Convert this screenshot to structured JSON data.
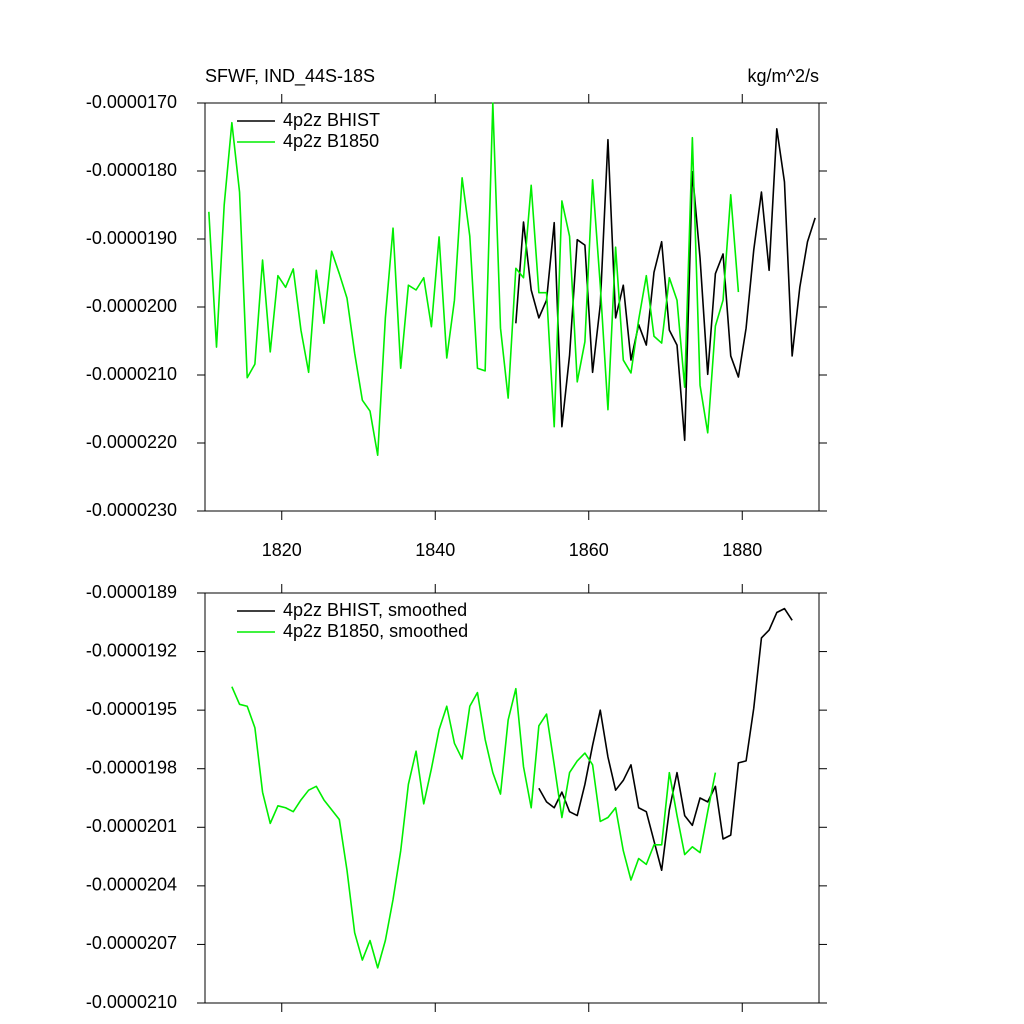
{
  "chart_data": [
    {
      "type": "line",
      "title": "SFWF, IND_44S-18S",
      "units": "kg/m^2/s",
      "x": [
        1810.5,
        1811.5,
        1812.5,
        1813.5,
        1814.5,
        1815.5,
        1816.5,
        1817.5,
        1818.5,
        1819.5,
        1820.5,
        1821.5,
        1822.5,
        1823.5,
        1824.5,
        1825.5,
        1826.5,
        1827.5,
        1828.5,
        1829.5,
        1830.5,
        1831.5,
        1832.5,
        1833.5,
        1834.5,
        1835.5,
        1836.5,
        1837.5,
        1838.5,
        1839.5,
        1840.5,
        1841.5,
        1842.5,
        1843.5,
        1844.5,
        1845.5,
        1846.5,
        1847.5,
        1848.5,
        1849.5,
        1850.5,
        1851.5,
        1852.5,
        1853.5,
        1854.5,
        1855.5,
        1856.5,
        1857.5,
        1858.5,
        1859.5,
        1860.5,
        1861.5,
        1862.5,
        1863.5,
        1864.5,
        1865.5,
        1866.5,
        1867.5,
        1868.5,
        1869.5,
        1870.5,
        1871.5,
        1872.5,
        1873.5,
        1874.5,
        1875.5,
        1876.5,
        1877.5,
        1878.5,
        1879.5,
        1880.5,
        1881.5,
        1882.5,
        1883.5,
        1884.5,
        1885.5,
        1886.5,
        1887.5,
        1888.5,
        1889.5
      ],
      "series": [
        {
          "name": "4p2z BHIST",
          "color": "#000000",
          "values": [
            null,
            null,
            null,
            null,
            null,
            null,
            null,
            null,
            null,
            null,
            null,
            null,
            null,
            null,
            null,
            null,
            null,
            null,
            null,
            null,
            null,
            null,
            null,
            null,
            null,
            null,
            null,
            null,
            null,
            null,
            null,
            null,
            null,
            null,
            null,
            null,
            null,
            null,
            null,
            null,
            -2.024e-05,
            -1.875e-05,
            -1.975e-05,
            -2.016e-05,
            -1.99e-05,
            -1.876e-05,
            -2.176e-05,
            -2.071e-05,
            -1.901e-05,
            -1.909e-05,
            -2.096e-05,
            -1.997e-05,
            -1.754e-05,
            -2.016e-05,
            -1.968e-05,
            -2.078e-05,
            -2.026e-05,
            -2.056e-05,
            -1.949e-05,
            -1.904e-05,
            -2.034e-05,
            -2.056e-05,
            -2.196e-05,
            -1.801e-05,
            -1.928e-05,
            -2.099e-05,
            -1.951e-05,
            -1.922e-05,
            -2.072e-05,
            -2.103e-05,
            -2.031e-05,
            -1.916e-05,
            -1.831e-05,
            -1.946e-05,
            -1.738e-05,
            -1.816e-05,
            -2.072e-05,
            -1.971e-05,
            -1.904e-05,
            -1.869e-05
          ]
        },
        {
          "name": "4p2z B1850",
          "color": "#00ee00",
          "values": [
            -1.86e-05,
            -2.059e-05,
            -1.85e-05,
            -1.729e-05,
            -1.831e-05,
            -2.104e-05,
            -2.084e-05,
            -1.931e-05,
            -2.066e-05,
            -1.954e-05,
            -1.971e-05,
            -1.944e-05,
            -2.034e-05,
            -2.096e-05,
            -1.946e-05,
            -2.024e-05,
            -1.918e-05,
            -1.951e-05,
            -1.987e-05,
            -2.068e-05,
            -2.137e-05,
            -2.153e-05,
            -2.218e-05,
            -2.016e-05,
            -1.884e-05,
            -2.09e-05,
            -1.968e-05,
            -1.975e-05,
            -1.957e-05,
            -2.029e-05,
            -1.897e-05,
            -2.075e-05,
            -1.99e-05,
            -1.81e-05,
            -1.896e-05,
            -2.09e-05,
            -2.094e-05,
            -1.7e-05,
            -2.031e-05,
            -2.134e-05,
            -1.943e-05,
            -1.957e-05,
            -1.821e-05,
            -1.979e-05,
            -1.979e-05,
            -2.176e-05,
            -1.844e-05,
            -1.896e-05,
            -2.11e-05,
            -2.051e-05,
            -1.813e-05,
            -1.968e-05,
            -2.151e-05,
            -1.912e-05,
            -2.078e-05,
            -2.097e-05,
            -2.019e-05,
            -1.954e-05,
            -2.043e-05,
            -2.053e-05,
            -1.957e-05,
            -1.99e-05,
            -2.118e-05,
            -1.751e-05,
            -2.115e-05,
            -2.185e-05,
            -2.028e-05,
            -1.99e-05,
            -1.835e-05,
            -1.978e-05,
            null,
            null,
            null,
            null,
            null,
            null,
            null,
            null,
            null,
            null
          ]
        }
      ],
      "xlim": [
        1810,
        1890
      ],
      "xticks": [
        1820,
        1840,
        1860,
        1880
      ],
      "x_tick_labels": true,
      "ylim": [
        -2.3e-05,
        -1.7e-05
      ],
      "yticks": [
        {
          "value": -1.7e-05,
          "label": "-0.0000170"
        },
        {
          "value": -1.8e-05,
          "label": "-0.0000180"
        },
        {
          "value": -1.9e-05,
          "label": "-0.0000190"
        },
        {
          "value": -2e-05,
          "label": "-0.0000200"
        },
        {
          "value": -2.1e-05,
          "label": "-0.0000210"
        },
        {
          "value": -2.2e-05,
          "label": "-0.0000220"
        },
        {
          "value": -2.3e-05,
          "label": "-0.0000230"
        }
      ],
      "legend": "upper left",
      "grid": false
    },
    {
      "type": "line",
      "x": [
        1810.5,
        1811.5,
        1812.5,
        1813.5,
        1814.5,
        1815.5,
        1816.5,
        1817.5,
        1818.5,
        1819.5,
        1820.5,
        1821.5,
        1822.5,
        1823.5,
        1824.5,
        1825.5,
        1826.5,
        1827.5,
        1828.5,
        1829.5,
        1830.5,
        1831.5,
        1832.5,
        1833.5,
        1834.5,
        1835.5,
        1836.5,
        1837.5,
        1838.5,
        1839.5,
        1840.5,
        1841.5,
        1842.5,
        1843.5,
        1844.5,
        1845.5,
        1846.5,
        1847.5,
        1848.5,
        1849.5,
        1850.5,
        1851.5,
        1852.5,
        1853.5,
        1854.5,
        1855.5,
        1856.5,
        1857.5,
        1858.5,
        1859.5,
        1860.5,
        1861.5,
        1862.5,
        1863.5,
        1864.5,
        1865.5,
        1866.5,
        1867.5,
        1868.5,
        1869.5,
        1870.5,
        1871.5,
        1872.5,
        1873.5,
        1874.5,
        1875.5,
        1876.5,
        1877.5,
        1878.5,
        1879.5,
        1880.5,
        1881.5,
        1882.5,
        1883.5,
        1884.5,
        1885.5,
        1886.5,
        1887.5,
        1888.5,
        1889.5
      ],
      "series": [
        {
          "name": "4p2z BHIST, smoothed",
          "color": "#000000",
          "values": [
            null,
            null,
            null,
            null,
            null,
            null,
            null,
            null,
            null,
            null,
            null,
            null,
            null,
            null,
            null,
            null,
            null,
            null,
            null,
            null,
            null,
            null,
            null,
            null,
            null,
            null,
            null,
            null,
            null,
            null,
            null,
            null,
            null,
            null,
            null,
            null,
            null,
            null,
            null,
            null,
            null,
            null,
            null,
            -1.99e-05,
            -1.997e-05,
            -2e-05,
            -1.992e-05,
            -2.002e-05,
            -2.004e-05,
            -1.988e-05,
            -1.968e-05,
            -1.95e-05,
            -1.974e-05,
            -1.991e-05,
            -1.986e-05,
            -1.978e-05,
            -2e-05,
            -2.002e-05,
            -2.017e-05,
            -2.032e-05,
            -2.001e-05,
            -1.982e-05,
            -2.004e-05,
            -2.009e-05,
            -1.995e-05,
            -1.997e-05,
            -1.989e-05,
            -2.016e-05,
            -2.014e-05,
            -1.977e-05,
            -1.976e-05,
            -1.949e-05,
            -1.913e-05,
            -1.909e-05,
            -1.9e-05,
            -1.898e-05,
            -1.904e-05,
            null,
            null,
            null
          ]
        },
        {
          "name": "4p2z B1850, smoothed",
          "color": "#00ee00",
          "values": [
            null,
            null,
            null,
            -1.938e-05,
            -1.947e-05,
            -1.948e-05,
            -1.959e-05,
            -1.992e-05,
            -2.008e-05,
            -1.999e-05,
            -2e-05,
            -2.002e-05,
            -1.996e-05,
            -1.991e-05,
            -1.989e-05,
            -1.996e-05,
            -2.001e-05,
            -2.006e-05,
            -2.032e-05,
            -2.064e-05,
            -2.078e-05,
            -2.068e-05,
            -2.082e-05,
            -2.068e-05,
            -2.047e-05,
            -2.022e-05,
            -1.988e-05,
            -1.971e-05,
            -1.998e-05,
            -1.98e-05,
            -1.96e-05,
            -1.948e-05,
            -1.967e-05,
            -1.975e-05,
            -1.948e-05,
            -1.941e-05,
            -1.965e-05,
            -1.982e-05,
            -1.993e-05,
            -1.955e-05,
            -1.939e-05,
            -1.979e-05,
            -2e-05,
            -1.958e-05,
            -1.952e-05,
            -1.978e-05,
            -2.005e-05,
            -1.982e-05,
            -1.976e-05,
            -1.972e-05,
            -1.978e-05,
            -2.007e-05,
            -2.005e-05,
            -2e-05,
            -2.022e-05,
            -2.037e-05,
            -2.026e-05,
            -2.029e-05,
            -2.019e-05,
            -2.019e-05,
            -1.982e-05,
            -2.004e-05,
            -2.024e-05,
            -2.02e-05,
            -2.023e-05,
            -2.002e-05,
            -1.982e-05,
            null,
            null,
            null,
            null,
            null,
            null,
            null,
            null,
            null,
            null,
            null,
            null,
            null
          ]
        }
      ],
      "xlim": [
        1810,
        1890
      ],
      "xticks": [
        1820,
        1840,
        1860,
        1880
      ],
      "x_tick_labels": false,
      "ylim": [
        -2.1e-05,
        -1.89e-05
      ],
      "yticks": [
        {
          "value": -1.89e-05,
          "label": "-0.0000189"
        },
        {
          "value": -1.92e-05,
          "label": "-0.0000192"
        },
        {
          "value": -1.95e-05,
          "label": "-0.0000195"
        },
        {
          "value": -1.98e-05,
          "label": "-0.0000198"
        },
        {
          "value": -2.01e-05,
          "label": "-0.0000201"
        },
        {
          "value": -2.04e-05,
          "label": "-0.0000204"
        },
        {
          "value": -2.07e-05,
          "label": "-0.0000207"
        },
        {
          "value": -2.1e-05,
          "label": "-0.0000210"
        }
      ],
      "legend": "upper left",
      "grid": false
    }
  ]
}
